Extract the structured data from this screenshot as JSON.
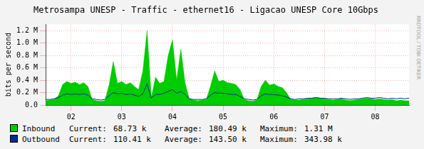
{
  "chart_data": {
    "type": "line",
    "title": "Metrosampa UNESP - Traffic - ethernet16 - Ligacao UNESP Core 10Gbps",
    "y_label": "bits per second",
    "watermark": "RRDTOOL / TOBI OETIKER",
    "categories": [
      null,
      null,
      null,
      null,
      null,
      null,
      "02",
      null,
      null,
      null,
      null,
      null,
      null,
      null,
      null,
      null,
      null,
      null,
      "03",
      null,
      null,
      null,
      null,
      null,
      null,
      null,
      null,
      null,
      null,
      null,
      "04",
      null,
      null,
      null,
      null,
      null,
      null,
      null,
      null,
      null,
      null,
      null,
      "05",
      null,
      null,
      null,
      null,
      null,
      null,
      null,
      null,
      null,
      null,
      null,
      "06",
      null,
      null,
      null,
      null,
      null,
      null,
      null,
      null,
      null,
      null,
      null,
      "07",
      null,
      null,
      null,
      null,
      null,
      null,
      null,
      null,
      null,
      null,
      null,
      "08",
      null,
      null,
      null,
      null,
      null,
      null,
      null,
      null
    ],
    "series": [
      {
        "name": "Inbound",
        "type": "area",
        "color": "#00cc00",
        "values": [
          70000,
          80000,
          90000,
          150000,
          330000,
          380000,
          350000,
          370000,
          330000,
          360000,
          300000,
          90000,
          70000,
          60000,
          70000,
          320000,
          700000,
          350000,
          380000,
          330000,
          360000,
          300000,
          250000,
          550000,
          1200000,
          120000,
          450000,
          350000,
          380000,
          800000,
          1050000,
          400000,
          900000,
          350000,
          100000,
          80000,
          70000,
          80000,
          90000,
          300000,
          550000,
          380000,
          400000,
          360000,
          350000,
          330000,
          250000,
          90000,
          70000,
          60000,
          80000,
          300000,
          400000,
          320000,
          340000,
          300000,
          280000,
          200000,
          90000,
          80000,
          80000,
          90000,
          100000,
          110000,
          120000,
          110000,
          100000,
          90000,
          80000,
          90000,
          100000,
          80000,
          70000,
          80000,
          90000,
          100000,
          110000,
          100000,
          90000,
          100000,
          90000,
          80000,
          90000,
          70000,
          80000,
          70000,
          68730
        ],
        "stats": {
          "labels": [
            "Current:",
            "Average:",
            "Maximum:"
          ],
          "values": [
            68730,
            180490,
            1310000
          ],
          "value_labels": [
            "68.73 k",
            "180.49 k",
            "1.31 M"
          ]
        }
      },
      {
        "name": "Outbound",
        "type": "line",
        "color": "#002a97",
        "values": [
          90000,
          90000,
          100000,
          120000,
          160000,
          180000,
          170000,
          180000,
          170000,
          180000,
          160000,
          100000,
          90000,
          80000,
          90000,
          150000,
          200000,
          180000,
          190000,
          170000,
          180000,
          160000,
          140000,
          180000,
          343980,
          110000,
          170000,
          170000,
          190000,
          220000,
          250000,
          190000,
          220000,
          170000,
          100000,
          90000,
          90000,
          90000,
          100000,
          160000,
          200000,
          190000,
          190000,
          180000,
          170000,
          170000,
          140000,
          100000,
          90000,
          80000,
          90000,
          150000,
          180000,
          170000,
          170000,
          160000,
          150000,
          130000,
          100000,
          90000,
          100000,
          100000,
          110000,
          110000,
          120000,
          110000,
          110000,
          100000,
          100000,
          100000,
          110000,
          100000,
          90000,
          100000,
          100000,
          110000,
          120000,
          110000,
          110000,
          120000,
          110000,
          100000,
          110000,
          100000,
          110000,
          100000,
          110410
        ],
        "stats": {
          "labels": [
            "Current:",
            "Average:",
            "Maximum:"
          ],
          "values": [
            110410,
            143500,
            343980
          ],
          "value_labels": [
            "110.41 k",
            "143.50 k",
            "343.98 k"
          ]
        }
      }
    ],
    "ylim": [
      0,
      1300000
    ],
    "yticks": [
      {
        "value": 0,
        "label": "0.0"
      },
      {
        "value": 200000,
        "label": "0.2 M"
      },
      {
        "value": 400000,
        "label": "0.4 M"
      },
      {
        "value": 600000,
        "label": "0.6 M"
      },
      {
        "value": 800000,
        "label": "0.8 M"
      },
      {
        "value": 1000000,
        "label": "1.0 M"
      },
      {
        "value": 1200000,
        "label": "1.2 M"
      }
    ],
    "grid": true,
    "legend": "bottom"
  }
}
